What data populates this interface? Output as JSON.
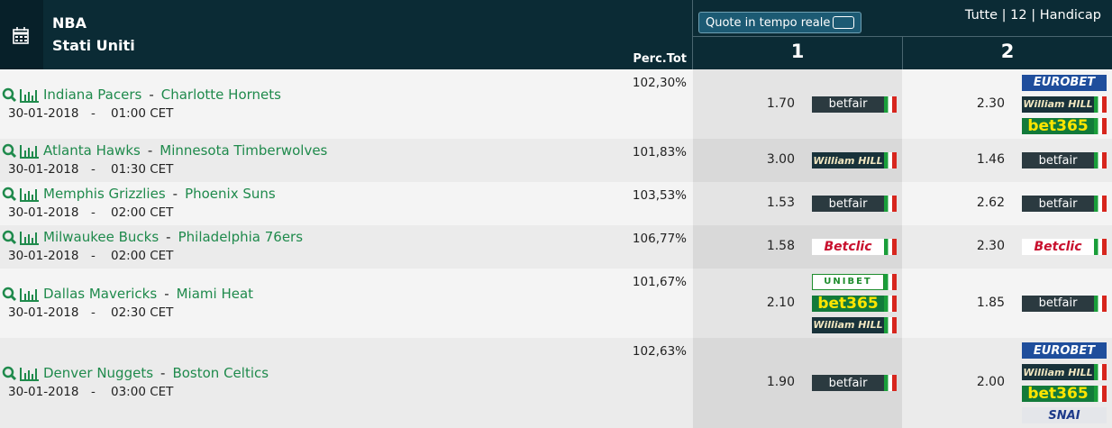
{
  "header": {
    "league": "NBA",
    "country": "Stati Uniti",
    "perc_header": "Perc.Tot",
    "live_toggle": "Quote in tempo reale",
    "filters": "Tutte | 12 | Handicap",
    "columns": [
      "1",
      "2"
    ]
  },
  "separator": "-",
  "events": [
    {
      "home": "Indiana Pacers",
      "away": "Charlotte Hornets",
      "date": "30-01-2018",
      "time": "01:00 CET",
      "perc": "102,30%",
      "odds": [
        {
          "value": "1.70",
          "bookmakers": [
            "betfair"
          ]
        },
        {
          "value": "2.30",
          "bookmakers": [
            "EUROBET",
            "William HILL",
            "bet365"
          ]
        }
      ]
    },
    {
      "home": "Atlanta Hawks",
      "away": "Minnesota Timberwolves",
      "date": "30-01-2018",
      "time": "01:30 CET",
      "perc": "101,83%",
      "odds": [
        {
          "value": "3.00",
          "bookmakers": [
            "William HILL"
          ]
        },
        {
          "value": "1.46",
          "bookmakers": [
            "betfair"
          ]
        }
      ]
    },
    {
      "home": "Memphis Grizzlies",
      "away": "Phoenix Suns",
      "date": "30-01-2018",
      "time": "02:00 CET",
      "perc": "103,53%",
      "odds": [
        {
          "value": "1.53",
          "bookmakers": [
            "betfair"
          ]
        },
        {
          "value": "2.62",
          "bookmakers": [
            "betfair"
          ]
        }
      ]
    },
    {
      "home": "Milwaukee Bucks",
      "away": "Philadelphia 76ers",
      "date": "30-01-2018",
      "time": "02:00 CET",
      "perc": "106,77%",
      "odds": [
        {
          "value": "1.58",
          "bookmakers": [
            "Betclic"
          ]
        },
        {
          "value": "2.30",
          "bookmakers": [
            "Betclic"
          ]
        }
      ]
    },
    {
      "home": "Dallas Mavericks",
      "away": "Miami Heat",
      "date": "30-01-2018",
      "time": "02:30 CET",
      "perc": "101,67%",
      "odds": [
        {
          "value": "2.10",
          "bookmakers": [
            "UNIBET",
            "bet365",
            "William HILL"
          ]
        },
        {
          "value": "1.85",
          "bookmakers": [
            "betfair"
          ]
        }
      ]
    },
    {
      "home": "Denver Nuggets",
      "away": "Boston Celtics",
      "date": "30-01-2018",
      "time": "03:00 CET",
      "perc": "102,63%",
      "odds": [
        {
          "value": "1.90",
          "bookmakers": [
            "betfair"
          ]
        },
        {
          "value": "2.00",
          "bookmakers": [
            "EUROBET",
            "William HILL",
            "bet365",
            "SNAI"
          ]
        }
      ]
    }
  ]
}
